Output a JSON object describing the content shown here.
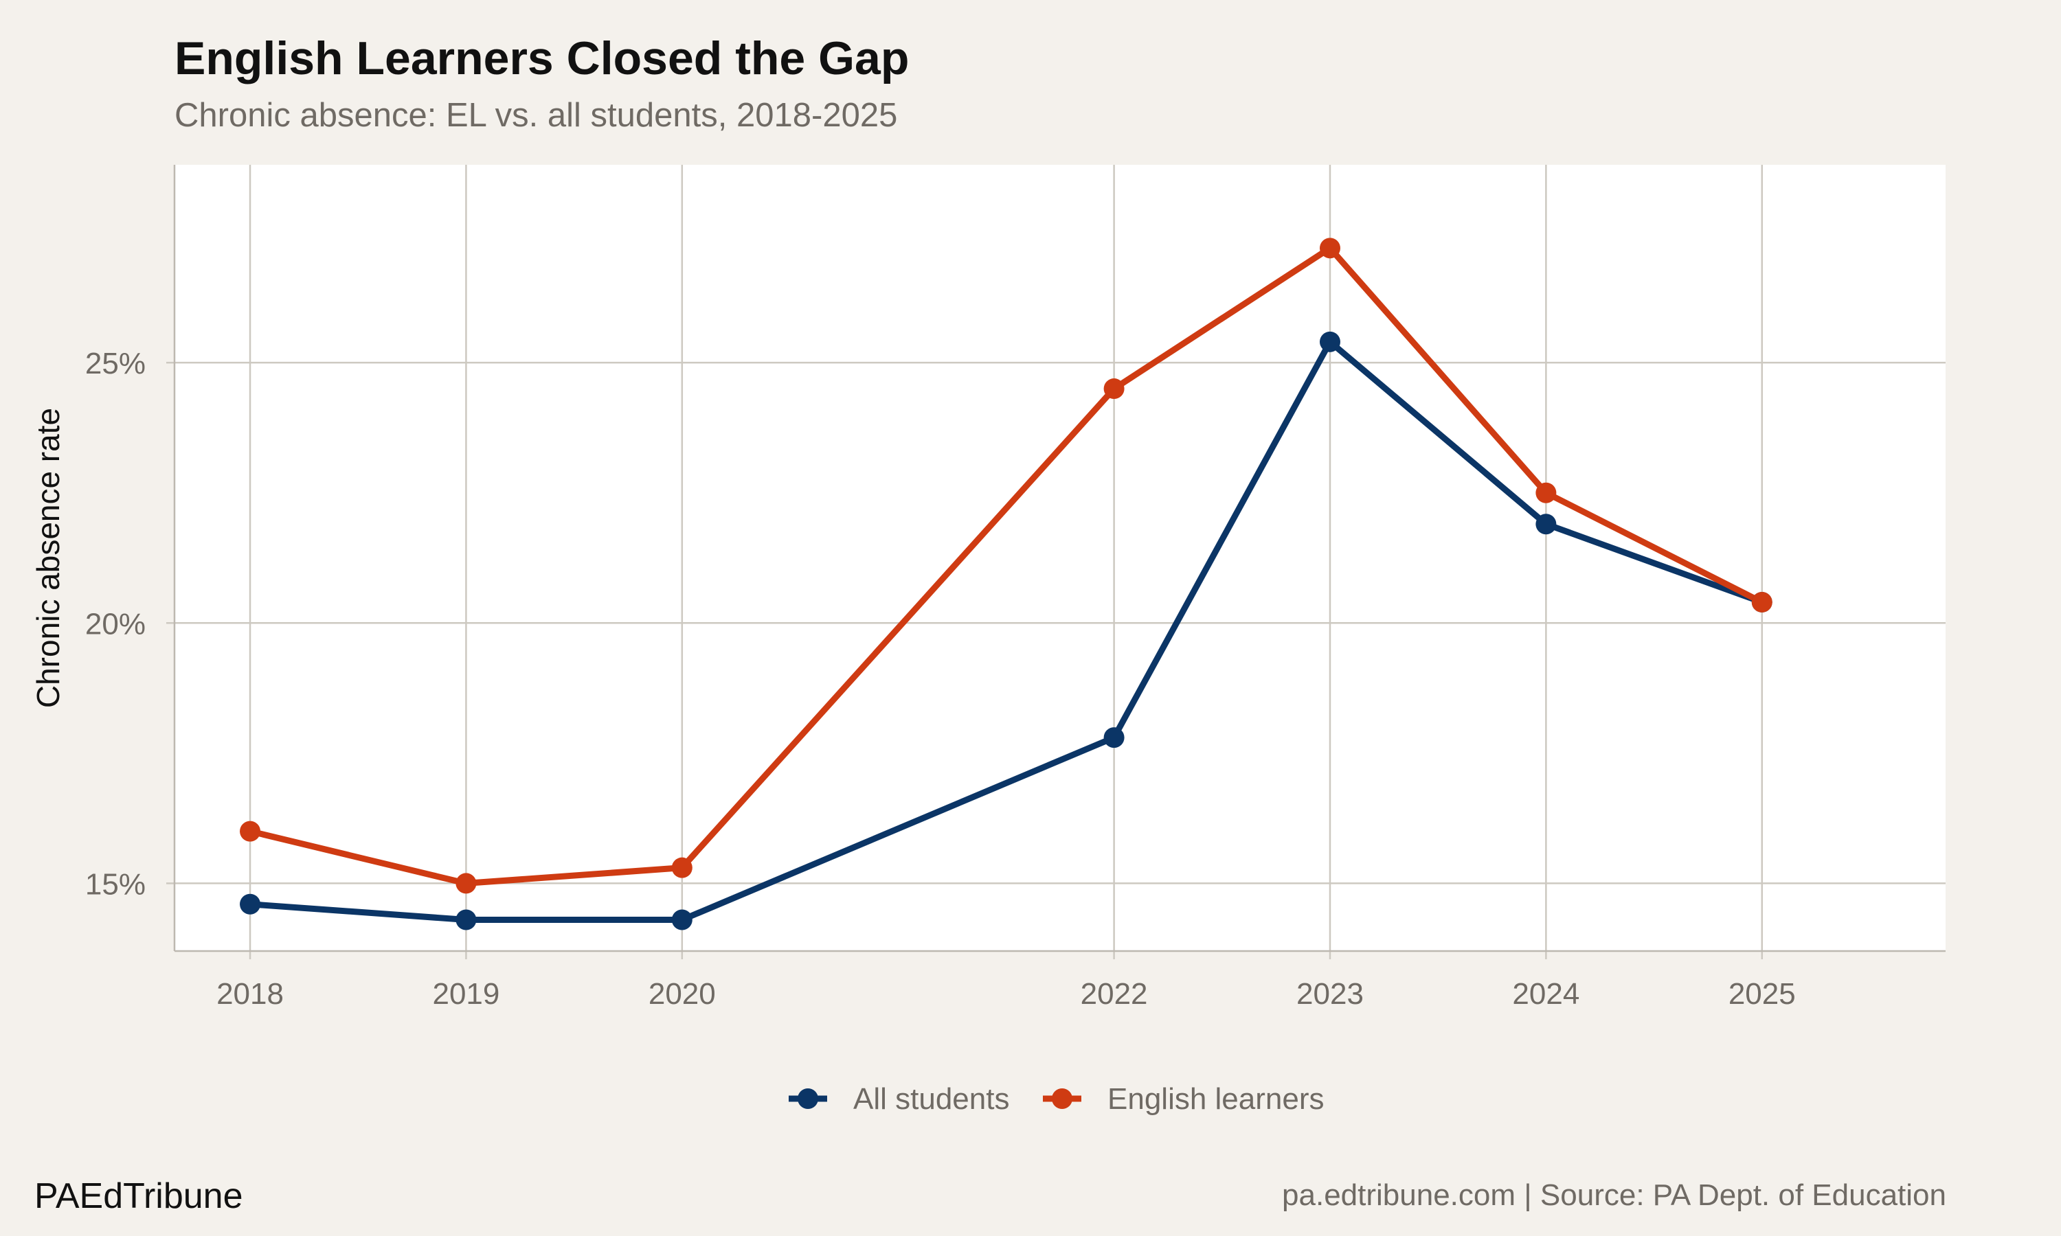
{
  "header": {
    "title": "English Learners Closed the Gap",
    "subtitle": "Chronic absence: EL vs. all students, 2018-2025"
  },
  "footer": {
    "brand": "PAEdTribune",
    "caption": "pa.edtribune.com | Source: PA Dept. of Education"
  },
  "colors": {
    "background": "#f4f1ec",
    "panel": "#ffffff",
    "grid": "#cdc9c1",
    "all_students": "#0b3566",
    "english_learners": "#cf3b12"
  },
  "chart_data": {
    "type": "line",
    "title": "English Learners Closed the Gap",
    "subtitle": "Chronic absence: EL vs. all students, 2018-2025",
    "xlabel": "",
    "ylabel": "Chronic absence rate",
    "x": [
      2018,
      2019,
      2020,
      2022,
      2023,
      2024,
      2025
    ],
    "x_tick_labels": [
      "2018",
      "2019",
      "2020",
      "2022",
      "2023",
      "2024",
      "2025"
    ],
    "y_ticks": [
      15,
      20,
      25
    ],
    "y_tick_labels": [
      "15%",
      "20%",
      "25%"
    ],
    "xlim": [
      2017.65,
      2025.85
    ],
    "ylim": [
      13.7,
      28.8
    ],
    "grid": true,
    "legend_position": "bottom",
    "series": [
      {
        "name": "All students",
        "color": "#0b3566",
        "values": [
          14.6,
          14.3,
          14.3,
          17.8,
          25.4,
          21.9,
          20.4
        ]
      },
      {
        "name": "English learners",
        "color": "#cf3b12",
        "values": [
          16.0,
          15.0,
          15.3,
          24.5,
          27.2,
          22.5,
          20.4
        ]
      }
    ]
  }
}
